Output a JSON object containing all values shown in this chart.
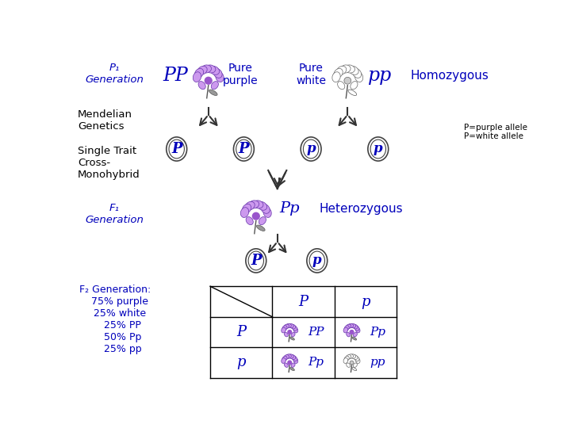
{
  "bg_color": "#ffffff",
  "blue": "#0000bb",
  "black": "#000000",
  "p1_label": "P₁\nGeneration",
  "p1_pp": "PP",
  "p1_pure_purple": "Pure\npurple",
  "p1_pure_white": "Pure\nwhite",
  "p1_pp2": "pp",
  "p1_homozygous": "Homozygous",
  "left_label1": "Mendelian\nGenetics",
  "left_label2": "Single Trait\nCross-\nMonohybrid",
  "f1_label": "F₁\nGeneration",
  "f1_pp": "Pp",
  "f1_hetero": "Heterozygous",
  "f2_label": "F₂ Generation:\n   75% purple\n   25% white\n     25% PP\n     50% Pp\n     25% pp",
  "note": "P=purple allele\nP=white allele",
  "punnett_col_headers": [
    "P",
    "p"
  ],
  "punnett_row_headers": [
    "P",
    "p"
  ],
  "punnett_cells": [
    [
      "PP",
      "Pp"
    ],
    [
      "Pp",
      "pp"
    ]
  ],
  "punnett_purple": [
    [
      true,
      true
    ],
    [
      true,
      false
    ]
  ]
}
